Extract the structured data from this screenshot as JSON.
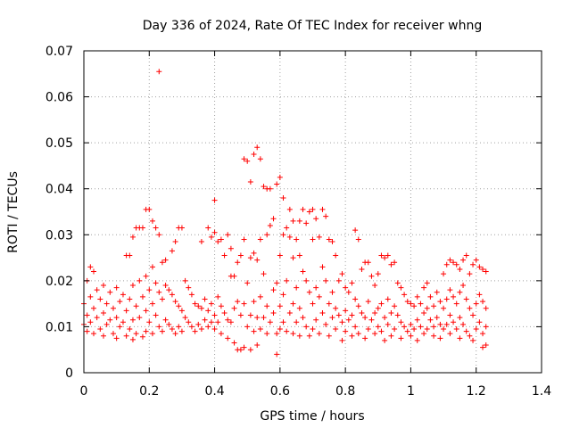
{
  "chart_data": {
    "type": "scatter",
    "title": "Day 336 of 2024, Rate Of TEC Index for receiver whng",
    "xlabel": "GPS time / hours",
    "ylabel": "ROTI / TECUs",
    "xlim": [
      0,
      1.4
    ],
    "ylim": [
      0,
      0.07
    ],
    "x_ticks": [
      0,
      0.2,
      0.4,
      0.6,
      0.8,
      1,
      1.2,
      1.4
    ],
    "x_tick_labels": [
      "0",
      "0.2",
      "0.4",
      "0.6",
      "0.8",
      "1",
      "1.2",
      "1.4"
    ],
    "y_ticks": [
      0,
      0.01,
      0.02,
      0.03,
      0.04,
      0.05,
      0.06,
      0.07
    ],
    "y_tick_labels": [
      "0",
      "0.01",
      "0.02",
      "0.03",
      "0.04",
      "0.05",
      "0.06",
      "0.07"
    ],
    "grid": true,
    "marker": "+",
    "color": "#ff0000",
    "points": [
      [
        0.0,
        0.015
      ],
      [
        0.0,
        0.0105
      ],
      [
        0.01,
        0.02
      ],
      [
        0.01,
        0.0125
      ],
      [
        0.01,
        0.009
      ],
      [
        0.02,
        0.023
      ],
      [
        0.02,
        0.0165
      ],
      [
        0.02,
        0.011
      ],
      [
        0.03,
        0.022
      ],
      [
        0.03,
        0.014
      ],
      [
        0.03,
        0.0085
      ],
      [
        0.04,
        0.018
      ],
      [
        0.04,
        0.012
      ],
      [
        0.05,
        0.016
      ],
      [
        0.05,
        0.0095
      ],
      [
        0.06,
        0.019
      ],
      [
        0.06,
        0.013
      ],
      [
        0.06,
        0.008
      ],
      [
        0.07,
        0.015
      ],
      [
        0.07,
        0.0105
      ],
      [
        0.08,
        0.0175
      ],
      [
        0.08,
        0.0115
      ],
      [
        0.09,
        0.014
      ],
      [
        0.09,
        0.0085
      ],
      [
        0.1,
        0.0185
      ],
      [
        0.1,
        0.012
      ],
      [
        0.1,
        0.0075
      ],
      [
        0.11,
        0.0155
      ],
      [
        0.11,
        0.01
      ],
      [
        0.12,
        0.017
      ],
      [
        0.12,
        0.011
      ],
      [
        0.13,
        0.0255
      ],
      [
        0.13,
        0.0135
      ],
      [
        0.13,
        0.008
      ],
      [
        0.14,
        0.0255
      ],
      [
        0.14,
        0.016
      ],
      [
        0.14,
        0.0095
      ],
      [
        0.15,
        0.0295
      ],
      [
        0.15,
        0.019
      ],
      [
        0.15,
        0.0115
      ],
      [
        0.15,
        0.0072
      ],
      [
        0.16,
        0.0315
      ],
      [
        0.16,
        0.0145
      ],
      [
        0.16,
        0.0085
      ],
      [
        0.17,
        0.0315
      ],
      [
        0.17,
        0.02
      ],
      [
        0.17,
        0.012
      ],
      [
        0.18,
        0.0315
      ],
      [
        0.18,
        0.0165
      ],
      [
        0.18,
        0.0078
      ],
      [
        0.19,
        0.0355
      ],
      [
        0.19,
        0.021
      ],
      [
        0.19,
        0.0135
      ],
      [
        0.19,
        0.009
      ],
      [
        0.2,
        0.0355
      ],
      [
        0.2,
        0.018
      ],
      [
        0.2,
        0.011
      ],
      [
        0.21,
        0.033
      ],
      [
        0.21,
        0.023
      ],
      [
        0.21,
        0.015
      ],
      [
        0.21,
        0.0085
      ],
      [
        0.22,
        0.0315
      ],
      [
        0.22,
        0.0195
      ],
      [
        0.22,
        0.0125
      ],
      [
        0.23,
        0.0655
      ],
      [
        0.23,
        0.03
      ],
      [
        0.23,
        0.0175
      ],
      [
        0.23,
        0.01
      ],
      [
        0.24,
        0.024
      ],
      [
        0.24,
        0.016
      ],
      [
        0.24,
        0.009
      ],
      [
        0.25,
        0.0245
      ],
      [
        0.25,
        0.019
      ],
      [
        0.25,
        0.0115
      ],
      [
        0.26,
        0.018
      ],
      [
        0.26,
        0.0105
      ],
      [
        0.27,
        0.0265
      ],
      [
        0.27,
        0.017
      ],
      [
        0.27,
        0.0095
      ],
      [
        0.28,
        0.0285
      ],
      [
        0.28,
        0.0155
      ],
      [
        0.28,
        0.0085
      ],
      [
        0.29,
        0.0315
      ],
      [
        0.29,
        0.0145
      ],
      [
        0.29,
        0.01
      ],
      [
        0.3,
        0.0315
      ],
      [
        0.3,
        0.0135
      ],
      [
        0.3,
        0.009
      ],
      [
        0.31,
        0.02
      ],
      [
        0.31,
        0.012
      ],
      [
        0.32,
        0.0185
      ],
      [
        0.32,
        0.011
      ],
      [
        0.33,
        0.017
      ],
      [
        0.33,
        0.01
      ],
      [
        0.34,
        0.015
      ],
      [
        0.34,
        0.009
      ],
      [
        0.35,
        0.0145
      ],
      [
        0.35,
        0.0105
      ],
      [
        0.36,
        0.0285
      ],
      [
        0.36,
        0.014
      ],
      [
        0.36,
        0.0095
      ],
      [
        0.37,
        0.016
      ],
      [
        0.37,
        0.0115
      ],
      [
        0.38,
        0.0315
      ],
      [
        0.38,
        0.0135
      ],
      [
        0.38,
        0.01
      ],
      [
        0.39,
        0.0295
      ],
      [
        0.39,
        0.015
      ],
      [
        0.39,
        0.011
      ],
      [
        0.4,
        0.0375
      ],
      [
        0.4,
        0.0305
      ],
      [
        0.4,
        0.0125
      ],
      [
        0.4,
        0.0095
      ],
      [
        0.41,
        0.0285
      ],
      [
        0.41,
        0.0165
      ],
      [
        0.41,
        0.011
      ],
      [
        0.42,
        0.029
      ],
      [
        0.42,
        0.0145
      ],
      [
        0.42,
        0.0085
      ],
      [
        0.43,
        0.0255
      ],
      [
        0.43,
        0.013
      ],
      [
        0.44,
        0.03
      ],
      [
        0.44,
        0.0115
      ],
      [
        0.44,
        0.0075
      ],
      [
        0.45,
        0.027
      ],
      [
        0.45,
        0.021
      ],
      [
        0.45,
        0.011
      ],
      [
        0.46,
        0.021
      ],
      [
        0.46,
        0.014
      ],
      [
        0.46,
        0.0065
      ],
      [
        0.47,
        0.024
      ],
      [
        0.47,
        0.0155
      ],
      [
        0.47,
        0.005
      ],
      [
        0.48,
        0.0255
      ],
      [
        0.48,
        0.0125
      ],
      [
        0.48,
        0.005
      ],
      [
        0.49,
        0.0465
      ],
      [
        0.49,
        0.029
      ],
      [
        0.49,
        0.015
      ],
      [
        0.49,
        0.0055
      ],
      [
        0.5,
        0.046
      ],
      [
        0.5,
        0.0195
      ],
      [
        0.5,
        0.01
      ],
      [
        0.51,
        0.0415
      ],
      [
        0.51,
        0.025
      ],
      [
        0.51,
        0.0125
      ],
      [
        0.51,
        0.005
      ],
      [
        0.52,
        0.0475
      ],
      [
        0.52,
        0.026
      ],
      [
        0.52,
        0.0155
      ],
      [
        0.52,
        0.009
      ],
      [
        0.53,
        0.049
      ],
      [
        0.53,
        0.0245
      ],
      [
        0.53,
        0.012
      ],
      [
        0.53,
        0.006
      ],
      [
        0.54,
        0.0465
      ],
      [
        0.54,
        0.029
      ],
      [
        0.54,
        0.0165
      ],
      [
        0.54,
        0.0095
      ],
      [
        0.55,
        0.0405
      ],
      [
        0.55,
        0.0215
      ],
      [
        0.55,
        0.012
      ],
      [
        0.56,
        0.04
      ],
      [
        0.56,
        0.03
      ],
      [
        0.56,
        0.0145
      ],
      [
        0.56,
        0.0085
      ],
      [
        0.57,
        0.04
      ],
      [
        0.57,
        0.032
      ],
      [
        0.57,
        0.011
      ],
      [
        0.58,
        0.0335
      ],
      [
        0.58,
        0.018
      ],
      [
        0.58,
        0.013
      ],
      [
        0.59,
        0.041
      ],
      [
        0.59,
        0.0195
      ],
      [
        0.59,
        0.0085
      ],
      [
        0.59,
        0.004
      ],
      [
        0.6,
        0.0425
      ],
      [
        0.6,
        0.0255
      ],
      [
        0.6,
        0.0145
      ],
      [
        0.6,
        0.0095
      ],
      [
        0.61,
        0.038
      ],
      [
        0.61,
        0.03
      ],
      [
        0.61,
        0.017
      ],
      [
        0.61,
        0.011
      ],
      [
        0.62,
        0.0315
      ],
      [
        0.62,
        0.02
      ],
      [
        0.62,
        0.009
      ],
      [
        0.63,
        0.0355
      ],
      [
        0.63,
        0.0295
      ],
      [
        0.63,
        0.013
      ],
      [
        0.64,
        0.033
      ],
      [
        0.64,
        0.025
      ],
      [
        0.64,
        0.015
      ],
      [
        0.64,
        0.0085
      ],
      [
        0.65,
        0.029
      ],
      [
        0.65,
        0.0185
      ],
      [
        0.65,
        0.011
      ],
      [
        0.66,
        0.033
      ],
      [
        0.66,
        0.0255
      ],
      [
        0.66,
        0.014
      ],
      [
        0.66,
        0.008
      ],
      [
        0.67,
        0.0355
      ],
      [
        0.67,
        0.022
      ],
      [
        0.67,
        0.012
      ],
      [
        0.68,
        0.0325
      ],
      [
        0.68,
        0.02
      ],
      [
        0.68,
        0.01
      ],
      [
        0.69,
        0.035
      ],
      [
        0.69,
        0.0175
      ],
      [
        0.69,
        0.008
      ],
      [
        0.7,
        0.0355
      ],
      [
        0.7,
        0.029
      ],
      [
        0.7,
        0.015
      ],
      [
        0.7,
        0.0095
      ],
      [
        0.71,
        0.0335
      ],
      [
        0.71,
        0.0185
      ],
      [
        0.71,
        0.0115
      ],
      [
        0.72,
        0.0295
      ],
      [
        0.72,
        0.0165
      ],
      [
        0.72,
        0.0085
      ],
      [
        0.73,
        0.0355
      ],
      [
        0.73,
        0.023
      ],
      [
        0.73,
        0.013
      ],
      [
        0.74,
        0.034
      ],
      [
        0.74,
        0.02
      ],
      [
        0.74,
        0.0105
      ],
      [
        0.75,
        0.029
      ],
      [
        0.75,
        0.015
      ],
      [
        0.75,
        0.008
      ],
      [
        0.76,
        0.0285
      ],
      [
        0.76,
        0.0175
      ],
      [
        0.76,
        0.012
      ],
      [
        0.77,
        0.0255
      ],
      [
        0.77,
        0.014
      ],
      [
        0.77,
        0.0095
      ],
      [
        0.78,
        0.02
      ],
      [
        0.78,
        0.0125
      ],
      [
        0.79,
        0.0215
      ],
      [
        0.79,
        0.011
      ],
      [
        0.79,
        0.007
      ],
      [
        0.8,
        0.0185
      ],
      [
        0.8,
        0.0135
      ],
      [
        0.8,
        0.009
      ],
      [
        0.81,
        0.0175
      ],
      [
        0.81,
        0.0115
      ],
      [
        0.82,
        0.0195
      ],
      [
        0.82,
        0.0125
      ],
      [
        0.82,
        0.008
      ],
      [
        0.83,
        0.031
      ],
      [
        0.83,
        0.016
      ],
      [
        0.83,
        0.01
      ],
      [
        0.84,
        0.029
      ],
      [
        0.84,
        0.0145
      ],
      [
        0.84,
        0.0085
      ],
      [
        0.85,
        0.0225
      ],
      [
        0.85,
        0.013
      ],
      [
        0.86,
        0.024
      ],
      [
        0.86,
        0.012
      ],
      [
        0.86,
        0.0075
      ],
      [
        0.87,
        0.024
      ],
      [
        0.87,
        0.0155
      ],
      [
        0.87,
        0.0095
      ],
      [
        0.88,
        0.021
      ],
      [
        0.88,
        0.0115
      ],
      [
        0.89,
        0.019
      ],
      [
        0.89,
        0.013
      ],
      [
        0.89,
        0.0085
      ],
      [
        0.9,
        0.0215
      ],
      [
        0.9,
        0.014
      ],
      [
        0.9,
        0.01
      ],
      [
        0.91,
        0.0255
      ],
      [
        0.91,
        0.015
      ],
      [
        0.91,
        0.009
      ],
      [
        0.92,
        0.025
      ],
      [
        0.92,
        0.012
      ],
      [
        0.92,
        0.007
      ],
      [
        0.93,
        0.0255
      ],
      [
        0.93,
        0.016
      ],
      [
        0.93,
        0.0105
      ],
      [
        0.94,
        0.0235
      ],
      [
        0.94,
        0.013
      ],
      [
        0.94,
        0.008
      ],
      [
        0.95,
        0.024
      ],
      [
        0.95,
        0.0145
      ],
      [
        0.95,
        0.0095
      ],
      [
        0.96,
        0.0195
      ],
      [
        0.96,
        0.0125
      ],
      [
        0.97,
        0.0185
      ],
      [
        0.97,
        0.011
      ],
      [
        0.97,
        0.0075
      ],
      [
        0.98,
        0.017
      ],
      [
        0.98,
        0.01
      ],
      [
        0.99,
        0.0155
      ],
      [
        0.99,
        0.009
      ],
      [
        1.0,
        0.015
      ],
      [
        1.0,
        0.0105
      ],
      [
        1.0,
        0.008
      ],
      [
        1.01,
        0.0145
      ],
      [
        1.01,
        0.0095
      ],
      [
        1.02,
        0.0165
      ],
      [
        1.02,
        0.0115
      ],
      [
        1.02,
        0.007
      ],
      [
        1.03,
        0.015
      ],
      [
        1.03,
        0.01
      ],
      [
        1.04,
        0.0185
      ],
      [
        1.04,
        0.013
      ],
      [
        1.04,
        0.0085
      ],
      [
        1.05,
        0.0195
      ],
      [
        1.05,
        0.014
      ],
      [
        1.05,
        0.0095
      ],
      [
        1.06,
        0.0165
      ],
      [
        1.06,
        0.0115
      ],
      [
        1.07,
        0.0145
      ],
      [
        1.07,
        0.01
      ],
      [
        1.07,
        0.008
      ],
      [
        1.08,
        0.0175
      ],
      [
        1.08,
        0.012
      ],
      [
        1.09,
        0.0155
      ],
      [
        1.09,
        0.0105
      ],
      [
        1.09,
        0.0075
      ],
      [
        1.1,
        0.0215
      ],
      [
        1.1,
        0.014
      ],
      [
        1.1,
        0.0095
      ],
      [
        1.11,
        0.0235
      ],
      [
        1.11,
        0.016
      ],
      [
        1.11,
        0.0105
      ],
      [
        1.12,
        0.0245
      ],
      [
        1.12,
        0.018
      ],
      [
        1.12,
        0.0125
      ],
      [
        1.12,
        0.0085
      ],
      [
        1.13,
        0.024
      ],
      [
        1.13,
        0.0165
      ],
      [
        1.13,
        0.011
      ],
      [
        1.14,
        0.0235
      ],
      [
        1.14,
        0.015
      ],
      [
        1.14,
        0.0095
      ],
      [
        1.15,
        0.0225
      ],
      [
        1.15,
        0.0175
      ],
      [
        1.15,
        0.012
      ],
      [
        1.15,
        0.0075
      ],
      [
        1.16,
        0.0245
      ],
      [
        1.16,
        0.019
      ],
      [
        1.16,
        0.0105
      ],
      [
        1.17,
        0.0255
      ],
      [
        1.17,
        0.016
      ],
      [
        1.17,
        0.009
      ],
      [
        1.18,
        0.0215
      ],
      [
        1.18,
        0.014
      ],
      [
        1.18,
        0.008
      ],
      [
        1.19,
        0.0235
      ],
      [
        1.19,
        0.0125
      ],
      [
        1.19,
        0.007
      ],
      [
        1.2,
        0.0245
      ],
      [
        1.2,
        0.015
      ],
      [
        1.2,
        0.0095
      ],
      [
        1.21,
        0.023
      ],
      [
        1.21,
        0.017
      ],
      [
        1.21,
        0.011
      ],
      [
        1.22,
        0.0225
      ],
      [
        1.22,
        0.0155
      ],
      [
        1.22,
        0.0085
      ],
      [
        1.22,
        0.0055
      ],
      [
        1.23,
        0.022
      ],
      [
        1.23,
        0.014
      ],
      [
        1.23,
        0.01
      ],
      [
        1.23,
        0.006
      ]
    ]
  }
}
